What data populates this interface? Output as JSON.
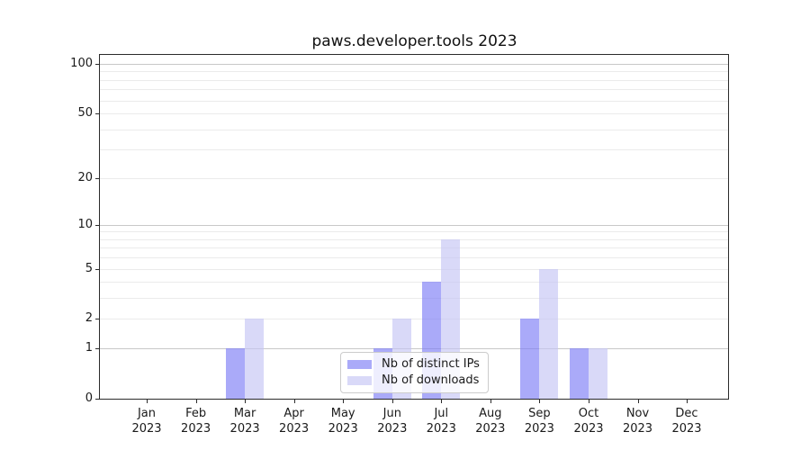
{
  "title": "paws.developer.tools 2023",
  "chart_data": {
    "type": "bar",
    "categories": [
      "Jan",
      "Feb",
      "Mar",
      "Apr",
      "May",
      "Jun",
      "Jul",
      "Aug",
      "Sep",
      "Oct",
      "Nov",
      "Dec"
    ],
    "year": "2023",
    "series": [
      {
        "name": "Nb of distinct IPs",
        "color": "rgba(124,124,246,0.65)",
        "values": [
          0,
          0,
          1,
          0,
          0,
          1,
          4,
          0,
          2,
          1,
          0,
          0
        ]
      },
      {
        "name": "Nb of downloads",
        "color": "rgba(196,196,244,0.65)",
        "values": [
          0,
          0,
          2,
          0,
          0,
          2,
          8,
          0,
          5,
          1,
          0,
          0
        ]
      }
    ],
    "title": "paws.developer.tools 2023",
    "xlabel": "",
    "ylabel": "",
    "yscale": "log1p",
    "ylim": [
      0,
      112
    ],
    "y_tick_values": [
      0,
      1,
      2,
      5,
      10,
      20,
      50,
      100
    ],
    "y_tick_labels": [
      "0",
      "1",
      "2",
      "5",
      "10",
      "20",
      "50",
      "100"
    ],
    "grid": "on",
    "grid_minor_values": [
      2,
      3,
      4,
      5,
      6,
      7,
      8,
      9,
      20,
      30,
      40,
      50,
      60,
      70,
      80,
      90
    ],
    "grid_major_values": [
      1,
      10,
      100
    ],
    "legend_position": "lower center",
    "legend_labels": [
      "Nb of distinct IPs",
      "Nb of downloads"
    ]
  },
  "colors": {
    "bar_distinct_ips": "rgba(124,124,246,0.65)",
    "bar_downloads": "rgba(196,196,244,0.65)",
    "grid_minor": "#ebebeb",
    "grid_major": "#c8c8c8",
    "axis": "#2b2b2b",
    "legend_border": "#cccccc",
    "text": "#1a1a1a"
  }
}
